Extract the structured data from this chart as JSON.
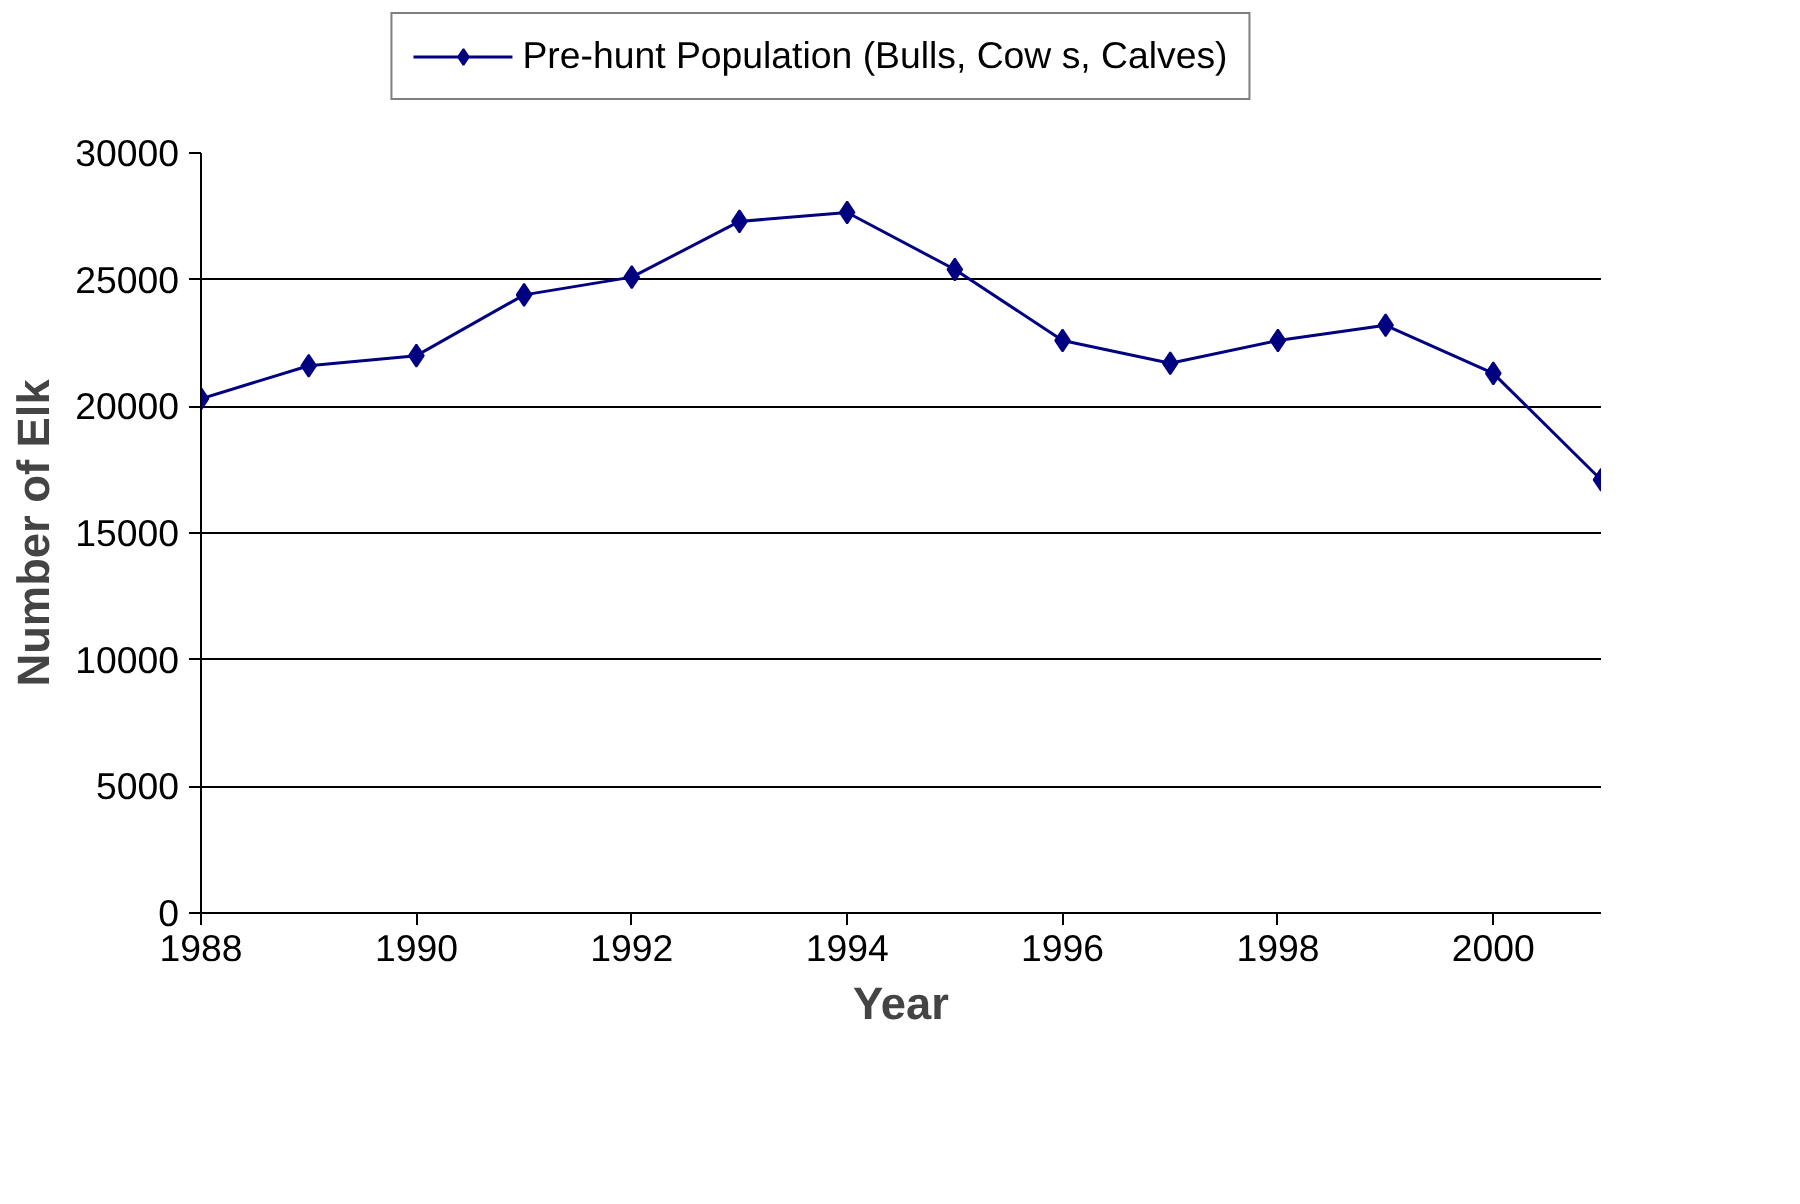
{
  "chart_data": {
    "type": "line",
    "xlabel": "Year",
    "ylabel": "Number of Elk",
    "x": [
      1988,
      1989,
      1990,
      1991,
      1992,
      1993,
      1994,
      1995,
      1996,
      1997,
      1998,
      1999,
      2000,
      2001
    ],
    "series": [
      {
        "name": "Pre-hunt Population (Bulls, Cow s, Calves)",
        "color": "#000080",
        "values": [
          20300,
          21600,
          22000,
          24400,
          25100,
          27300,
          27650,
          25400,
          22600,
          21700,
          22600,
          23200,
          21300,
          17100
        ]
      }
    ],
    "xlim": [
      1988,
      2001
    ],
    "xticks": [
      1988,
      1990,
      1992,
      1994,
      1996,
      1998,
      2000
    ],
    "ylim": [
      0,
      30000
    ],
    "yticks": [
      0,
      5000,
      10000,
      15000,
      20000,
      25000,
      30000
    ],
    "grid": "y",
    "legend": "top",
    "marker": "diamond",
    "line_style": "solid"
  }
}
